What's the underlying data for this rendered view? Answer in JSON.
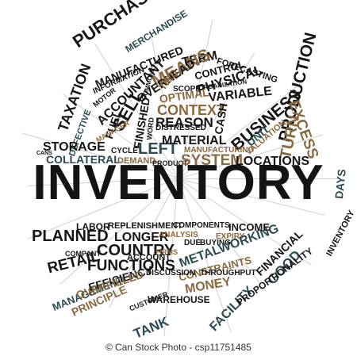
{
  "main_word": "INVENTORY",
  "footer": {
    "copyright_symbol": "©",
    "credit": "Can Stock Photo - csp11751485"
  },
  "colors": {
    "black": "#161616",
    "brown": "#8a6a3f",
    "teal": "#2c4a52",
    "background": "#ffffff",
    "rays": "#cfcfcf"
  },
  "words": [
    "PURCHASABLE",
    "MERCHANDISE",
    "TAXATION",
    "MANUFACTURED",
    "TERM",
    "FORECASTING",
    "DEFECTIVE",
    "INFORMATION",
    "MEANS",
    "CONTROL",
    "PHYSICAL",
    "ACCOUNTANT",
    "OVERHEAD",
    "SCOPE",
    "ORGANIZATION",
    "TIED",
    "SELL",
    "COMMONLY",
    "MOTOR",
    "OPTIMAL",
    "VARIABLE",
    "FUEL",
    "MANAGER",
    "CONTEXT",
    "PRODUCTION",
    "BUSINESS",
    "FINISHED",
    "REASON",
    "EXCESS",
    "CANS",
    "STORAGE",
    "WORD",
    "DISTRESSED",
    "CASH",
    "VALUATION",
    "TURN",
    "COLLATERAL",
    "CYCLE",
    "LEFT",
    "MATERIAL",
    "UNIT",
    "DEMAND",
    "PRODUCT",
    "SYSTEM",
    "MANUFACTURING",
    "LOCATIONS",
    "DAYS",
    "LABOR",
    "REPLENISHMENT",
    "COMPONENTS",
    "INCOME",
    "PLANNED",
    "LONGER",
    "ANALYSIS",
    "EXPIRY",
    "COUNTRY",
    "BUYING",
    "DUE",
    "RETAIL",
    "COMPANY",
    "FIRMS",
    "METALWORKING",
    "FINANCIAL",
    "ACCOUNT",
    "FUNCTIONS",
    "CONSTRAINTS",
    "MANAGEMENT",
    "DISCUSSION",
    "THROUGHPUT",
    "FACILITY",
    "GOOD",
    "INVENTORY",
    "EFFICIENCY",
    "MONEY",
    "PROPORTIONALITY",
    "OVERFILLED",
    "WAREHOUSE",
    "PRINCIPLE",
    "CUSTOMER",
    "TANK"
  ]
}
